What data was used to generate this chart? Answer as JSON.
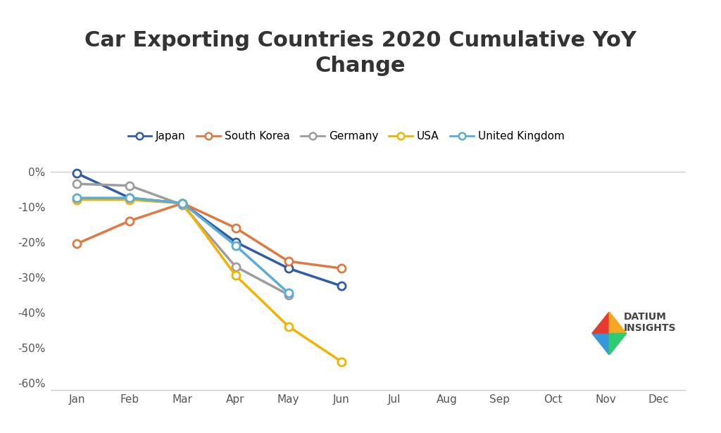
{
  "title": "Car Exporting Countries 2020 Cumulative YoY\nChange",
  "months": [
    "Jan",
    "Feb",
    "Mar",
    "Apr",
    "May",
    "Jun",
    "Jul",
    "Aug",
    "Sep",
    "Oct",
    "Nov",
    "Dec"
  ],
  "series": [
    {
      "name": "Japan",
      "color": "#2e5da8",
      "data_x": [
        1,
        2,
        3,
        4,
        5,
        6
      ],
      "data_y": [
        -0.5,
        -7.5,
        -9.0,
        -20.0,
        -27.5,
        -32.5
      ]
    },
    {
      "name": "South Korea",
      "color": "#e07840",
      "data_x": [
        1,
        2,
        3,
        4,
        5,
        6
      ],
      "data_y": [
        -20.5,
        -14.0,
        -9.0,
        -16.0,
        -25.5,
        -27.5
      ]
    },
    {
      "name": "Germany",
      "color": "#9d9d9d",
      "data_x": [
        1,
        2,
        3,
        4,
        5,
        6
      ],
      "data_y": [
        -3.5,
        -4.0,
        -9.5,
        -27.0,
        -35.0,
        null
      ]
    },
    {
      "name": "USA",
      "color": "#f0b400",
      "data_x": [
        1,
        2,
        3,
        4,
        5,
        6
      ],
      "data_y": [
        -8.0,
        -8.0,
        -9.0,
        -29.5,
        -44.0,
        -54.0
      ]
    },
    {
      "name": "United Kingdom",
      "color": "#5bacd6",
      "data_x": [
        1,
        2,
        3,
        4,
        5,
        6
      ],
      "data_y": [
        -7.5,
        -7.5,
        -9.0,
        -21.0,
        -34.5,
        null
      ]
    }
  ],
  "ylim": [
    -62,
    2
  ],
  "yticks": [
    0,
    -10,
    -20,
    -30,
    -40,
    -50,
    -60
  ],
  "ytick_labels": [
    "0%",
    "-10%",
    "-20%",
    "-30%",
    "-40%",
    "-50%",
    "-60%"
  ],
  "background_color": "#ffffff",
  "title_fontsize": 22,
  "legend_fontsize": 11,
  "tick_fontsize": 11
}
